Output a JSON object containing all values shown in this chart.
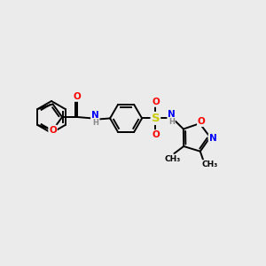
{
  "bg_color": "#ebebeb",
  "line_color": "#000000",
  "atom_colors": {
    "O": "#ff0000",
    "N": "#0000ff",
    "S": "#cccc00",
    "H": "#888888",
    "C": "#000000"
  },
  "font_size": 7.5,
  "line_width": 1.4,
  "figsize": [
    3.0,
    3.0
  ],
  "dpi": 100,
  "scale": 18
}
